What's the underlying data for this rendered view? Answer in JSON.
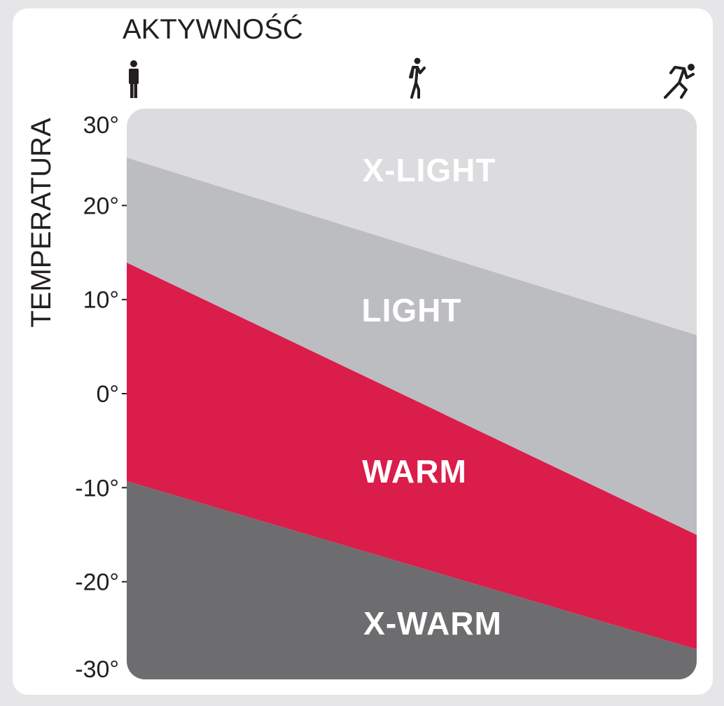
{
  "chart_data": {
    "type": "area",
    "title": "AKTYWNOŚĆ",
    "xlabel": "AKTYWNOŚĆ",
    "ylabel": "TEMPERATURA",
    "x_categories": [
      "standing-icon",
      "walking-icon",
      "running-icon"
    ],
    "ylim": [
      -30,
      30
    ],
    "y_ticks": [
      30,
      20,
      10,
      0,
      -10,
      -20,
      -30
    ],
    "y_tick_labels": [
      "30°",
      "20°",
      "10°",
      "0°",
      "-10°",
      "-20°",
      "-30°"
    ],
    "grid": false,
    "boundaries": [
      {
        "between": [
          "X-LIGHT",
          "LIGHT"
        ],
        "start": 25.2,
        "end": 6.1
      },
      {
        "between": [
          "LIGHT",
          "WARM"
        ],
        "start": 14.1,
        "end": -15.2
      },
      {
        "between": [
          "WARM",
          "X-WARM"
        ],
        "start": -9.2,
        "end": -27.3
      }
    ],
    "bands": [
      {
        "name": "X-LIGHT",
        "color": "#dcdcdf"
      },
      {
        "name": "LIGHT",
        "color": "#bcbdc1"
      },
      {
        "name": "WARM",
        "color": "#da1d4b"
      },
      {
        "name": "X-WARM",
        "color": "#6d6d70"
      }
    ]
  }
}
